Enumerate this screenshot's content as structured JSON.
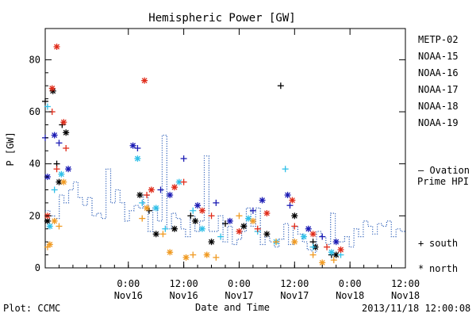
{
  "chart_data": {
    "type": "scatter",
    "title": "Hemispheric Power [GW]",
    "xlabel": "Date and Time",
    "ylabel": "P [GW]",
    "ylim": [
      0,
      92
    ],
    "xlim": [
      "2013-11-15 06:00",
      "2013-11-18 12:00"
    ],
    "y_ticks": [
      0,
      20,
      40,
      60,
      80
    ],
    "x_ticks": [
      {
        "at": "2013-11-16 00:00",
        "time": "0:00",
        "date": "Nov16"
      },
      {
        "at": "2013-11-16 12:00",
        "time": "12:00",
        "date": "Nov16"
      },
      {
        "at": "2013-11-17 00:00",
        "time": "0:00",
        "date": "Nov17"
      },
      {
        "at": "2013-11-17 12:00",
        "time": "12:00",
        "date": "Nov17"
      },
      {
        "at": "2013-11-18 00:00",
        "time": "0:00",
        "date": "Nov18"
      },
      {
        "at": "2013-11-18 12:00",
        "time": "12:00",
        "date": "Nov18"
      }
    ],
    "grid": false,
    "legend_position": "right",
    "series": [
      {
        "name": "METP-02",
        "color": "#000000",
        "south": [
          [
            "2013-11-15 06:00",
            64
          ],
          [
            "2013-11-15 08:30",
            40
          ],
          [
            "2013-11-15 09:40",
            55
          ],
          [
            "2013-11-16 04:30",
            22
          ],
          [
            "2013-11-16 13:30",
            20
          ],
          [
            "2013-11-16 21:00",
            17
          ],
          [
            "2013-11-17 09:00",
            70
          ],
          [
            "2013-11-17 16:00",
            10
          ],
          [
            "2013-11-17 20:00",
            5
          ]
        ],
        "north": [
          [
            "2013-11-15 06:30",
            18
          ],
          [
            "2013-11-15 07:40",
            68
          ],
          [
            "2013-11-15 09:00",
            33
          ],
          [
            "2013-11-15 10:30",
            52
          ],
          [
            "2013-11-16 02:30",
            28
          ],
          [
            "2013-11-16 06:00",
            13
          ],
          [
            "2013-11-16 10:00",
            15
          ],
          [
            "2013-11-16 14:30",
            18
          ],
          [
            "2013-11-16 18:00",
            10
          ],
          [
            "2013-11-17 01:00",
            16
          ],
          [
            "2013-11-17 06:00",
            13
          ],
          [
            "2013-11-17 12:00",
            20
          ],
          [
            "2013-11-17 16:30",
            8
          ],
          [
            "2013-11-17 21:00",
            5
          ]
        ]
      },
      {
        "name": "NOAA-15",
        "color": "#1c1cb4",
        "south": [
          [
            "2013-11-15 06:00",
            50
          ],
          [
            "2013-11-15 09:00",
            48
          ],
          [
            "2013-11-16 02:00",
            46
          ],
          [
            "2013-11-16 07:00",
            30
          ],
          [
            "2013-11-16 12:00",
            42
          ],
          [
            "2013-11-16 19:00",
            25
          ],
          [
            "2013-11-17 03:00",
            22
          ],
          [
            "2013-11-17 11:00",
            24
          ],
          [
            "2013-11-17 18:00",
            12
          ]
        ],
        "north": [
          [
            "2013-11-15 06:30",
            35
          ],
          [
            "2013-11-15 08:00",
            51
          ],
          [
            "2013-11-15 11:00",
            38
          ],
          [
            "2013-11-16 01:00",
            47
          ],
          [
            "2013-11-16 09:00",
            28
          ],
          [
            "2013-11-16 15:00",
            24
          ],
          [
            "2013-11-16 22:00",
            18
          ],
          [
            "2013-11-17 05:00",
            26
          ],
          [
            "2013-11-17 10:30",
            28
          ],
          [
            "2013-11-17 15:00",
            15
          ],
          [
            "2013-11-17 21:00",
            10
          ]
        ]
      },
      {
        "name": "NOAA-16",
        "color": "#30c0e8",
        "south": [
          [
            "2013-11-15 06:30",
            62
          ],
          [
            "2013-11-15 08:00",
            30
          ],
          [
            "2013-11-16 03:00",
            25
          ],
          [
            "2013-11-16 08:00",
            15
          ],
          [
            "2013-11-16 14:00",
            22
          ],
          [
            "2013-11-16 20:00",
            12
          ],
          [
            "2013-11-17 04:00",
            14
          ],
          [
            "2013-11-17 10:00",
            38
          ],
          [
            "2013-11-17 16:00",
            8
          ],
          [
            "2013-11-17 22:00",
            5
          ]
        ],
        "north": [
          [
            "2013-11-15 07:00",
            16
          ],
          [
            "2013-11-15 09:30",
            36
          ],
          [
            "2013-11-16 02:00",
            42
          ],
          [
            "2013-11-16 06:00",
            23
          ],
          [
            "2013-11-16 11:00",
            33
          ],
          [
            "2013-11-16 16:00",
            15
          ],
          [
            "2013-11-17 02:00",
            19
          ],
          [
            "2013-11-17 08:00",
            10
          ],
          [
            "2013-11-17 14:00",
            12
          ],
          [
            "2013-11-17 20:00",
            6
          ]
        ]
      },
      {
        "name": "NOAA-17",
        "color": "#2ee08c",
        "south": [],
        "north": []
      },
      {
        "name": "NOAA-18",
        "color": "#f09a22",
        "south": [
          [
            "2013-11-15 06:30",
            8
          ],
          [
            "2013-11-15 09:00",
            16
          ],
          [
            "2013-11-16 03:00",
            19
          ],
          [
            "2013-11-16 07:30",
            13
          ],
          [
            "2013-11-16 14:00",
            5
          ],
          [
            "2013-11-16 19:00",
            4
          ],
          [
            "2013-11-17 00:00",
            20
          ],
          [
            "2013-11-17 08:00",
            10
          ],
          [
            "2013-11-17 16:00",
            5
          ],
          [
            "2013-11-17 20:30",
            3
          ]
        ],
        "north": [
          [
            "2013-11-15 07:00",
            9
          ],
          [
            "2013-11-15 08:00",
            18
          ],
          [
            "2013-11-15 10:00",
            33
          ],
          [
            "2013-11-16 04:00",
            23
          ],
          [
            "2013-11-16 09:00",
            6
          ],
          [
            "2013-11-16 12:30",
            4
          ],
          [
            "2013-11-16 17:00",
            5
          ],
          [
            "2013-11-17 03:00",
            18
          ],
          [
            "2013-11-17 12:00",
            10
          ],
          [
            "2013-11-17 18:00",
            2
          ]
        ]
      },
      {
        "name": "NOAA-19",
        "color": "#e02c1a",
        "south": [
          [
            "2013-11-15 07:30",
            60
          ],
          [
            "2013-11-15 08:30",
            38
          ],
          [
            "2013-11-15 10:30",
            46
          ],
          [
            "2013-11-16 04:00",
            28
          ],
          [
            "2013-11-16 12:00",
            33
          ],
          [
            "2013-11-16 18:00",
            20
          ],
          [
            "2013-11-17 04:00",
            15
          ],
          [
            "2013-11-17 12:00",
            16
          ],
          [
            "2013-11-17 19:00",
            8
          ]
        ],
        "north": [
          [
            "2013-11-15 06:30",
            20
          ],
          [
            "2013-11-15 07:30",
            69
          ],
          [
            "2013-11-15 08:30",
            85
          ],
          [
            "2013-11-15 10:00",
            56
          ],
          [
            "2013-11-16 03:30",
            72
          ],
          [
            "2013-11-16 05:00",
            30
          ],
          [
            "2013-11-16 10:00",
            31
          ],
          [
            "2013-11-16 16:00",
            22
          ],
          [
            "2013-11-17 00:00",
            14
          ],
          [
            "2013-11-17 06:00",
            21
          ],
          [
            "2013-11-17 11:30",
            26
          ],
          [
            "2013-11-17 16:00",
            13
          ],
          [
            "2013-11-17 22:00",
            7
          ]
        ]
      }
    ],
    "ovation": {
      "name": "Ovation Prime HPI",
      "label_lines": [
        "Ovation",
        "Prime HPI"
      ],
      "color": "#2d5fb8",
      "values": [
        22,
        20,
        19,
        28,
        25,
        30,
        33,
        27,
        24,
        27,
        20,
        21,
        19,
        38,
        25,
        30,
        25,
        18,
        22,
        24,
        23,
        28,
        14,
        23,
        18,
        51,
        15,
        21,
        19,
        15,
        12,
        20,
        14,
        18,
        43,
        14,
        14,
        20,
        10,
        16,
        9,
        11,
        14,
        23,
        16,
        23,
        9,
        12,
        10,
        8,
        11,
        17,
        9,
        16,
        13,
        10,
        7,
        6,
        14,
        12,
        9,
        21,
        10,
        10,
        12,
        8,
        15,
        12,
        18,
        16,
        13,
        17,
        16,
        18,
        12,
        15,
        14
      ]
    },
    "markers": {
      "south_symbol": "+",
      "south_label": "south",
      "north_symbol": "*",
      "north_label": "north"
    }
  },
  "footer": {
    "plot_credit": "Plot: CCMC",
    "timestamp": "2013/11/18 12:00:08"
  }
}
